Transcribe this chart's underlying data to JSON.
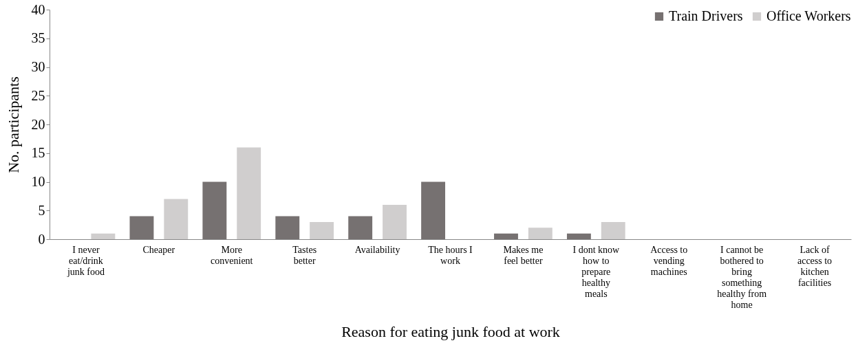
{
  "chart_data": {
    "type": "bar",
    "xlabel": "Reason for eating junk food at work",
    "ylabel": "No. participants",
    "categories": [
      "I never eat/drink junk food",
      "Cheaper",
      "More convenient",
      "Tastes better",
      "Availability",
      "The hours I work",
      "Makes me feel better",
      "I dont know how to prepare healthy meals",
      "Access to vending machines",
      "I cannot be bothered to bring something healthy from home",
      "Lack of access to kitchen facilities"
    ],
    "series": [
      {
        "name": "Train Drivers",
        "color": "#767171",
        "values": [
          0,
          4,
          10,
          4,
          4,
          10,
          1,
          1,
          0,
          0,
          0
        ]
      },
      {
        "name": "Office Workers",
        "color": "#d0cece",
        "values": [
          1,
          7,
          16,
          3,
          6,
          0,
          2,
          3,
          0,
          0,
          0
        ]
      }
    ],
    "ylim": [
      0,
      40
    ],
    "yticks": [
      0,
      5,
      10,
      15,
      20,
      25,
      30,
      35,
      40
    ],
    "grid": false,
    "legend": "top right"
  }
}
